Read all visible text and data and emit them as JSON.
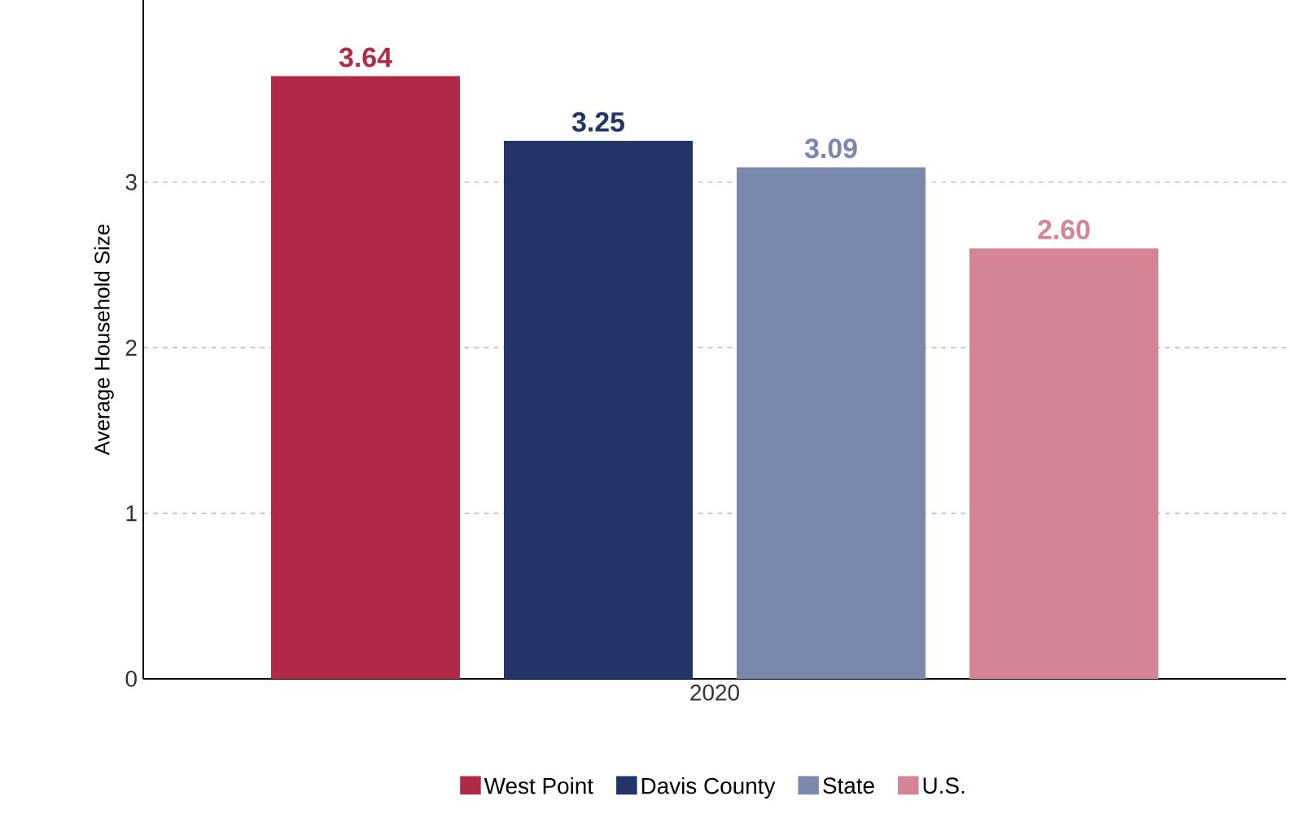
{
  "chart_data": {
    "type": "bar",
    "ylabel": "Average Household Size",
    "categories": [
      "2020"
    ],
    "series": [
      {
        "name": "West Point",
        "color": "#b02a48",
        "values": [
          3.64
        ],
        "value_labels": [
          "3.64"
        ]
      },
      {
        "name": "Davis County",
        "color": "#233468",
        "values": [
          3.25
        ],
        "value_labels": [
          "3.25"
        ]
      },
      {
        "name": "State",
        "color": "#7b88ad",
        "values": [
          3.09
        ],
        "value_labels": [
          "3.09"
        ]
      },
      {
        "name": "U.S.",
        "color": "#d48494",
        "values": [
          2.6
        ],
        "value_labels": [
          "2.60"
        ]
      }
    ],
    "ylim": [
      0,
      4.1
    ],
    "yticks": [
      0,
      1,
      2,
      3
    ],
    "grid": "y",
    "legend": "bottom"
  }
}
